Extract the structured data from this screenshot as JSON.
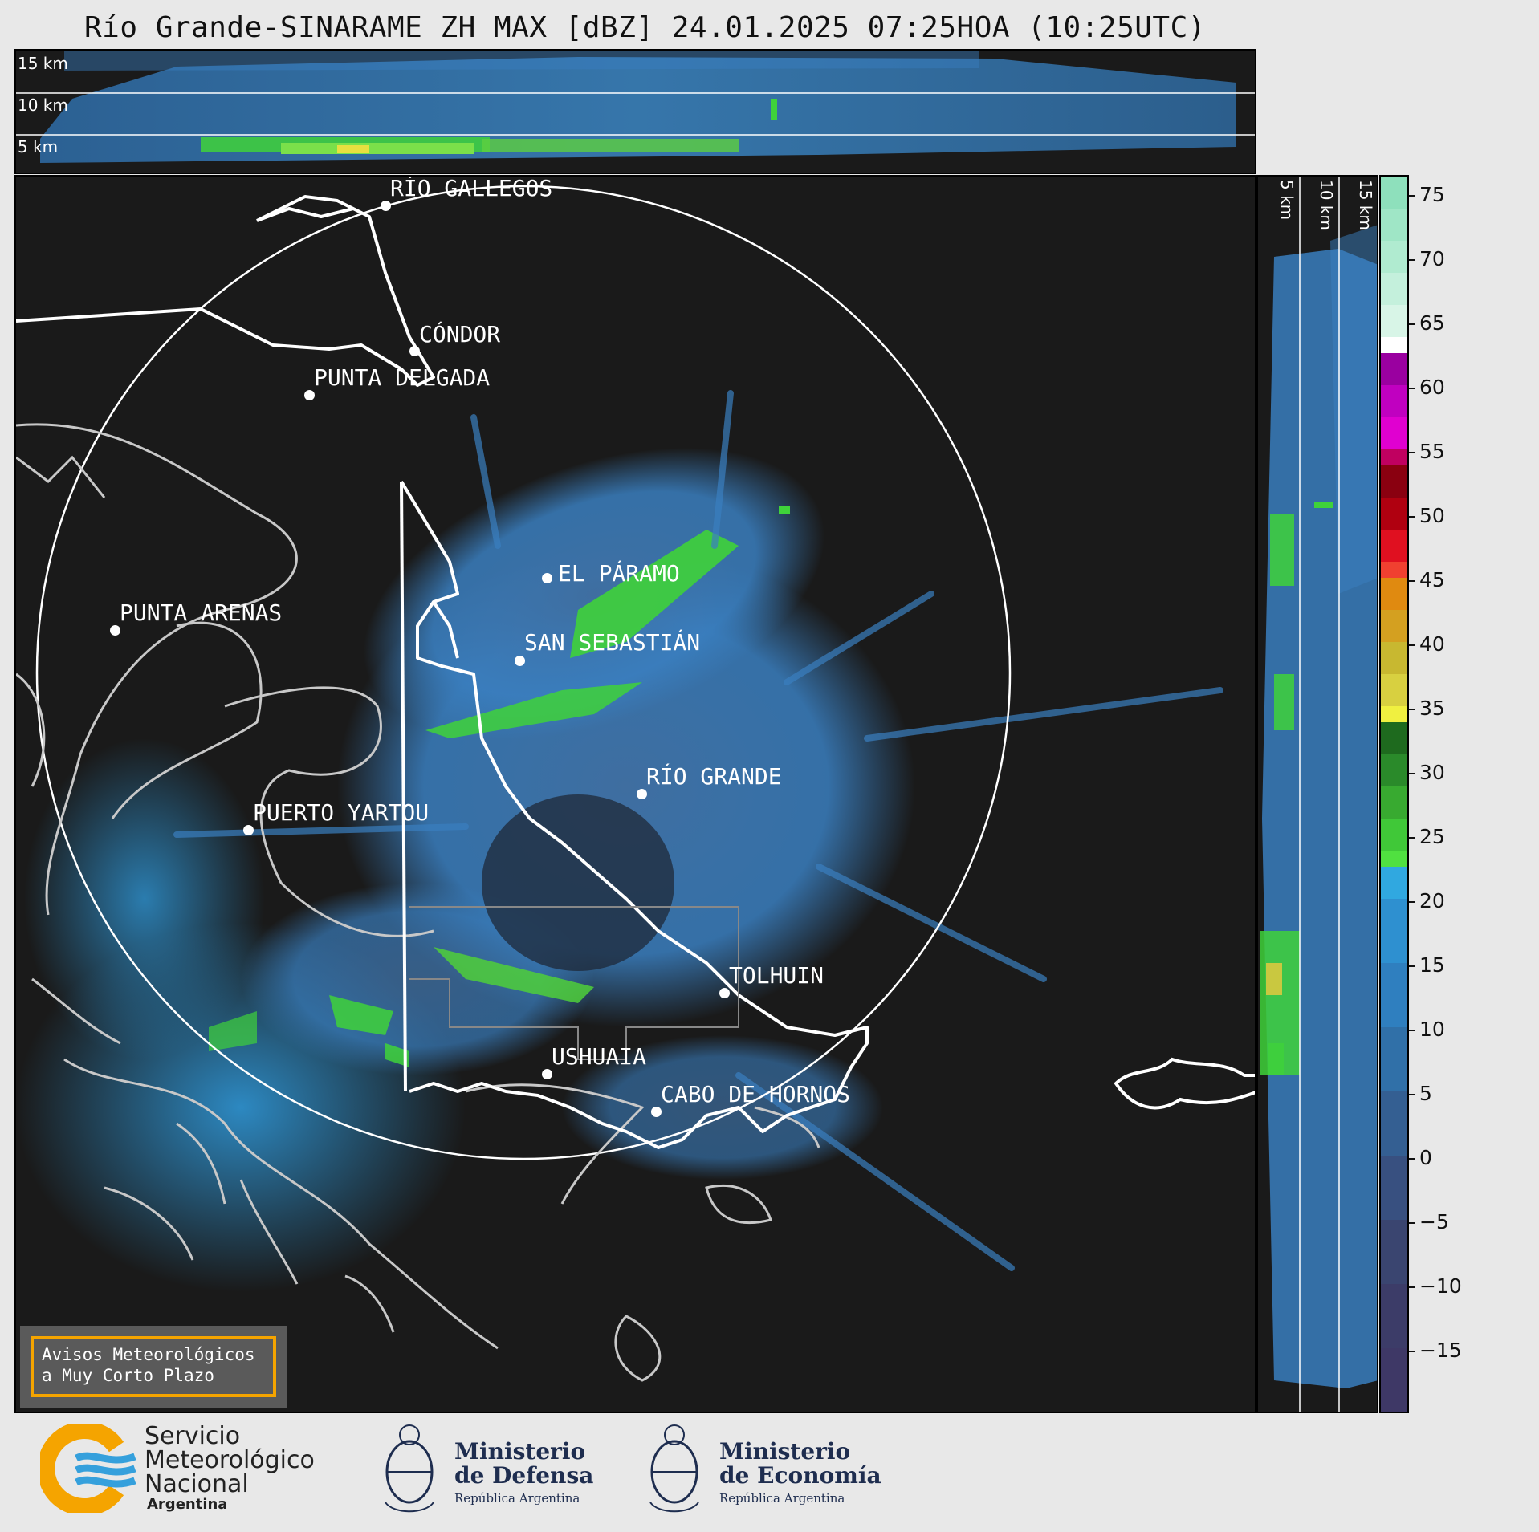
{
  "title": "Río Grande-SINARAME ZH MAX [dBZ] 24.01.2025 07:25HOA (10:25UTC)",
  "top_section": {
    "height_labels": [
      "15 km",
      "10 km",
      "5 km"
    ]
  },
  "side_section": {
    "height_labels": [
      "5 km",
      "10 km",
      "15 km"
    ]
  },
  "colorbar": {
    "unit": "dBZ",
    "ticks": [
      "75",
      "70",
      "65",
      "60",
      "55",
      "50",
      "45",
      "40",
      "35",
      "30",
      "25",
      "20",
      "15",
      "10",
      "5",
      "0",
      "−5",
      "−10",
      "−15"
    ]
  },
  "cities": [
    {
      "name": "RÍO GALLEGOS"
    },
    {
      "name": "CÓNDOR"
    },
    {
      "name": "PUNTA DELGADA"
    },
    {
      "name": "EL PÁRAMO"
    },
    {
      "name": "PUNTA ARENAS"
    },
    {
      "name": "SAN SEBASTIÁN"
    },
    {
      "name": "RÍO GRANDE"
    },
    {
      "name": "PUERTO YARTOU"
    },
    {
      "name": "TOLHUIN"
    },
    {
      "name": "USHUAIA"
    },
    {
      "name": "CABO DE HORNOS"
    }
  ],
  "warning": {
    "line1": "Avisos Meteorológicos",
    "line2": "a Muy Corto Plazo"
  },
  "logos": {
    "smn": {
      "line1": "Servicio",
      "line2": "Meteorológico",
      "line3": "Nacional",
      "line4": "Argentina"
    },
    "defensa": {
      "line1": "Ministerio",
      "line2": "de Defensa",
      "sub": "República Argentina"
    },
    "economia": {
      "line1": "Ministerio",
      "line2": "de Economía",
      "sub": "República Argentina"
    }
  },
  "colors": {
    "background": "#1a1a1a",
    "echo_low": "#3a7fc0",
    "echo_mid": "#3fd23a",
    "warning_border": "#f5a400"
  }
}
